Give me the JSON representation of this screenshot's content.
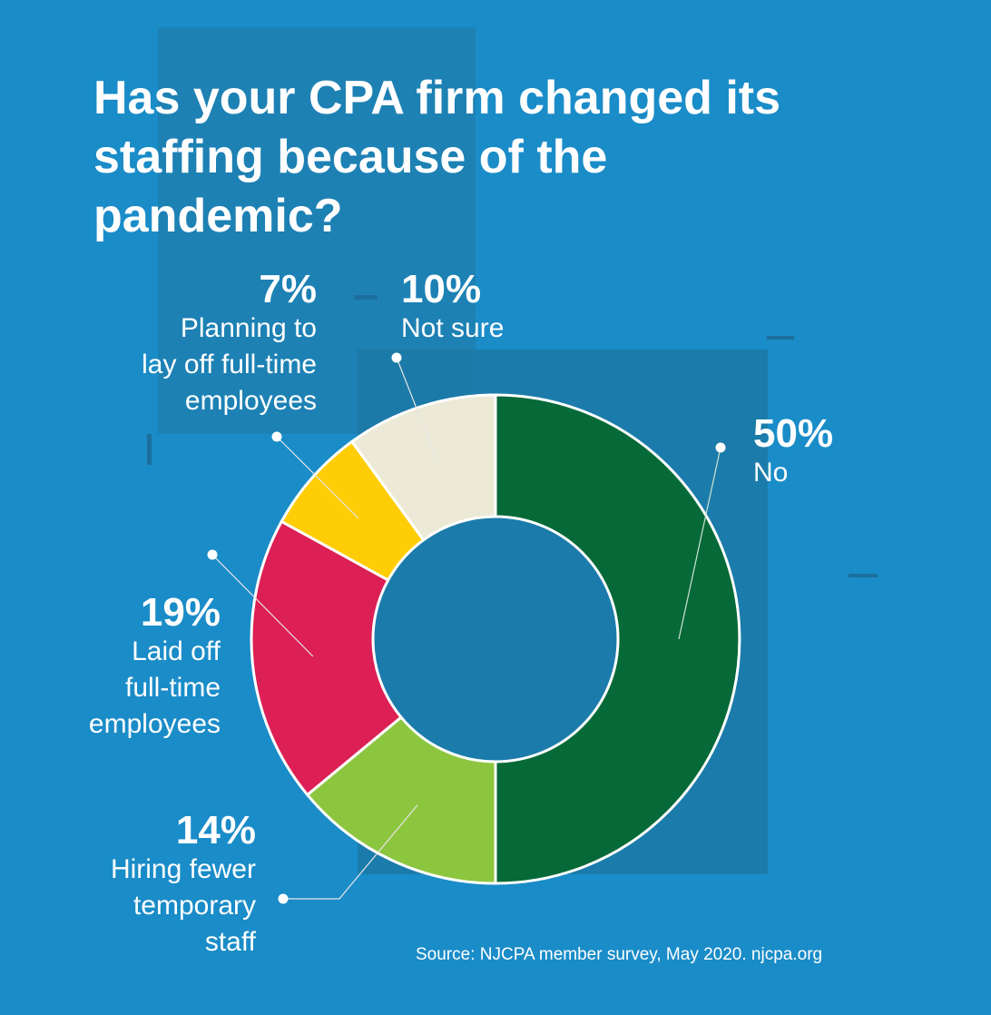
{
  "title": "Has your CPA firm changed its staffing because of the pandemic?",
  "source": "Source: NJCPA member survey, May 2020. njcpa.org",
  "colors": {
    "background": "#1a8cc8",
    "no": "#066938",
    "temporary": "#8cc63f",
    "laid_off": "#dc1f54",
    "planning": "#ffcd05",
    "not_sure": "#ece9d6"
  },
  "chart_data": {
    "type": "pie",
    "style": "donut",
    "title": "Has your CPA firm changed its staffing because of the pandemic?",
    "unit": "%",
    "categories": [
      "No",
      "Hiring fewer temporary staff",
      "Laid off full-time employees",
      "Planning to lay off full-time employees",
      "Not sure"
    ],
    "values": [
      50,
      14,
      19,
      7,
      10
    ],
    "slices": [
      {
        "key": "no",
        "pct": "50%",
        "label": "No",
        "value": 50,
        "color": "#066938"
      },
      {
        "key": "temporary",
        "pct": "14%",
        "label": "Hiring fewer temporary staff",
        "value": 14,
        "color": "#8cc63f"
      },
      {
        "key": "laid_off",
        "pct": "19%",
        "label": "Laid off full-time employees",
        "value": 19,
        "color": "#dc1f54"
      },
      {
        "key": "planning",
        "pct": "7%",
        "label": "Planning to lay off full-time employees",
        "value": 7,
        "color": "#ffcd05"
      },
      {
        "key": "not_sure",
        "pct": "10%",
        "label": "Not sure",
        "value": 10,
        "color": "#ece9d6"
      }
    ]
  },
  "labels": {
    "no": {
      "pct": "50%",
      "line1": "No"
    },
    "temporary": {
      "pct": "14%",
      "line1": "Hiring fewer",
      "line2": "temporary",
      "line3": "staff"
    },
    "laid_off": {
      "pct": "19%",
      "line1": "Laid off",
      "line2": "full-time",
      "line3": "employees"
    },
    "planning": {
      "pct": "7%",
      "line1": "Planning to",
      "line2": "lay off full-time",
      "line3": "employees"
    },
    "not_sure": {
      "pct": "10%",
      "line1": "Not sure"
    }
  }
}
